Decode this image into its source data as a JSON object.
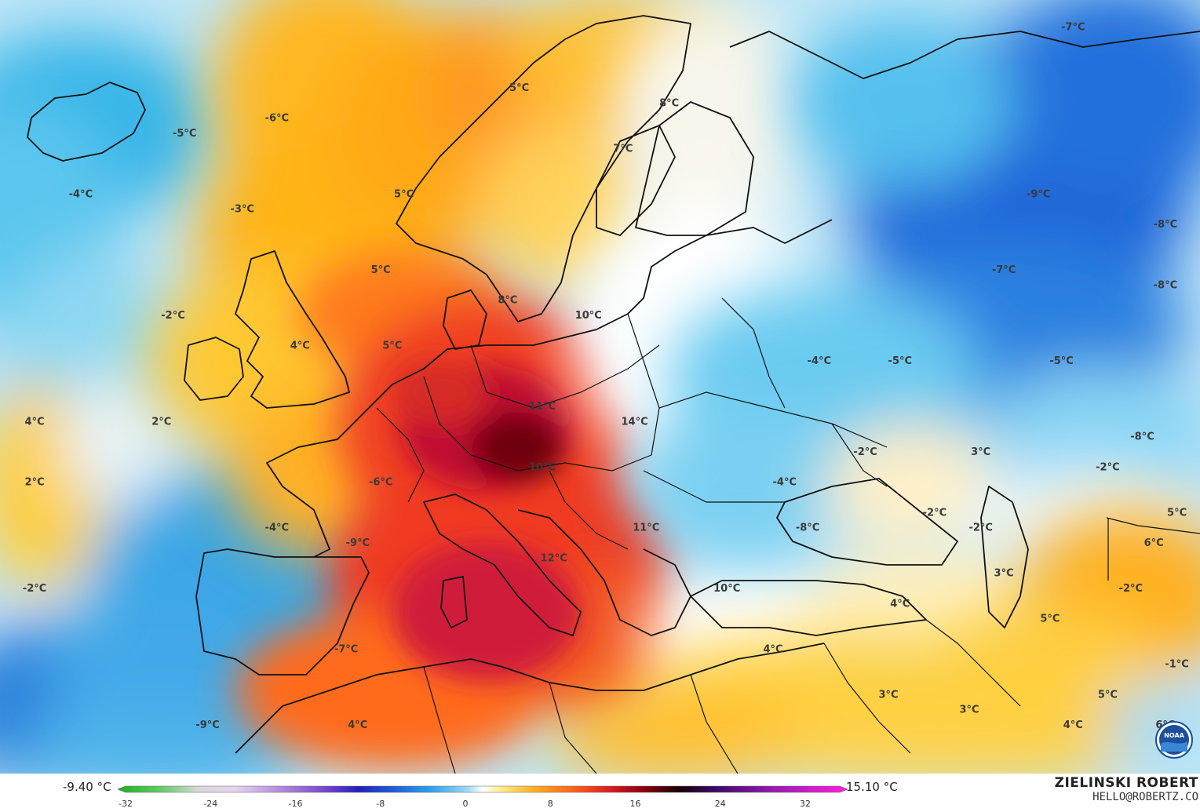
{
  "map": {
    "labels": [
      {
        "text": "5°C",
        "lon": 5,
        "lat": 70
      },
      {
        "text": "-6°C",
        "lon": -16,
        "lat": 68
      },
      {
        "text": "-5°C",
        "lon": -24,
        "lat": 67
      },
      {
        "text": "8°C",
        "lon": 18,
        "lat": 69
      },
      {
        "text": "7°C",
        "lon": 14,
        "lat": 66
      },
      {
        "text": "-4°C",
        "lon": -33,
        "lat": 63
      },
      {
        "text": "-3°C",
        "lon": -19,
        "lat": 62
      },
      {
        "text": "5°C",
        "lon": -5,
        "lat": 63
      },
      {
        "text": "-7°C",
        "lon": 53,
        "lat": 74
      },
      {
        "text": "-9°C",
        "lon": 50,
        "lat": 63
      },
      {
        "text": "-8°C",
        "lon": 61,
        "lat": 61
      },
      {
        "text": "5°C",
        "lon": -7,
        "lat": 58
      },
      {
        "text": "-7°C",
        "lon": 47,
        "lat": 58
      },
      {
        "text": "-8°C",
        "lon": 61,
        "lat": 57
      },
      {
        "text": "-2°C",
        "lon": -25,
        "lat": 55
      },
      {
        "text": "8°C",
        "lon": 4,
        "lat": 56
      },
      {
        "text": "10°C",
        "lon": 11,
        "lat": 55
      },
      {
        "text": "4°C",
        "lon": -14,
        "lat": 53
      },
      {
        "text": "5°C",
        "lon": -6,
        "lat": 53
      },
      {
        "text": "-4°C",
        "lon": 31,
        "lat": 52
      },
      {
        "text": "-5°C",
        "lon": 38,
        "lat": 52
      },
      {
        "text": "-5°C",
        "lon": 52,
        "lat": 52
      },
      {
        "text": "11°C",
        "lon": 7,
        "lat": 49
      },
      {
        "text": "4°C",
        "lon": -37,
        "lat": 48
      },
      {
        "text": "2°C",
        "lon": -26,
        "lat": 48
      },
      {
        "text": "14°C",
        "lon": 15,
        "lat": 48
      },
      {
        "text": "-8°C",
        "lon": 59,
        "lat": 47
      },
      {
        "text": "3°C",
        "lon": 45,
        "lat": 46
      },
      {
        "text": "-2°C",
        "lon": 35,
        "lat": 46
      },
      {
        "text": "-2°C",
        "lon": 56,
        "lat": 45
      },
      {
        "text": "10°C",
        "lon": 7,
        "lat": 45
      },
      {
        "text": "2°C",
        "lon": -37,
        "lat": 44
      },
      {
        "text": "-6°C",
        "lon": -7,
        "lat": 44
      },
      {
        "text": "-4°C",
        "lon": 28,
        "lat": 44
      },
      {
        "text": "-2°C",
        "lon": 41,
        "lat": 42
      },
      {
        "text": "5°C",
        "lon": 62,
        "lat": 42
      },
      {
        "text": "-4°C",
        "lon": -16,
        "lat": 41
      },
      {
        "text": "11°C",
        "lon": 16,
        "lat": 41
      },
      {
        "text": "-8°C",
        "lon": 30,
        "lat": 41
      },
      {
        "text": "-2°C",
        "lon": 45,
        "lat": 41
      },
      {
        "text": "-9°C",
        "lon": -9,
        "lat": 40
      },
      {
        "text": "6°C",
        "lon": 60,
        "lat": 40
      },
      {
        "text": "12°C",
        "lon": 8,
        "lat": 39
      },
      {
        "text": "10°C",
        "lon": 23,
        "lat": 37
      },
      {
        "text": "3°C",
        "lon": 47,
        "lat": 38
      },
      {
        "text": "-2°C",
        "lon": -37,
        "lat": 37
      },
      {
        "text": "-2°C",
        "lon": 58,
        "lat": 37
      },
      {
        "text": "4°C",
        "lon": 38,
        "lat": 36
      },
      {
        "text": "5°C",
        "lon": 51,
        "lat": 35
      },
      {
        "text": "-7°C",
        "lon": -10,
        "lat": 33
      },
      {
        "text": "4°C",
        "lon": 27,
        "lat": 33
      },
      {
        "text": "-1°C",
        "lon": 62,
        "lat": 32
      },
      {
        "text": "-9°C",
        "lon": -22,
        "lat": 28
      },
      {
        "text": "4°C",
        "lon": -9,
        "lat": 28
      },
      {
        "text": "3°C",
        "lon": 37,
        "lat": 30
      },
      {
        "text": "3°C",
        "lon": 44,
        "lat": 29
      },
      {
        "text": "4°C",
        "lon": 53,
        "lat": 28
      },
      {
        "text": "5°C",
        "lon": 56,
        "lat": 30
      },
      {
        "text": "6°C",
        "lon": 61,
        "lat": 28
      }
    ]
  },
  "colorbar": {
    "min_label": "-9.40 °C",
    "max_label": "15.10 °C",
    "range": [
      -32,
      32
    ],
    "ticks": [
      "-32",
      "-24",
      "-16",
      "-8",
      "0",
      "8",
      "16",
      "24",
      "32"
    ]
  },
  "brand": {
    "name": "ZIELINSKI ROBERT",
    "email": "HELLO@ROBERTZ.CO",
    "logo_text": "NOAA"
  }
}
